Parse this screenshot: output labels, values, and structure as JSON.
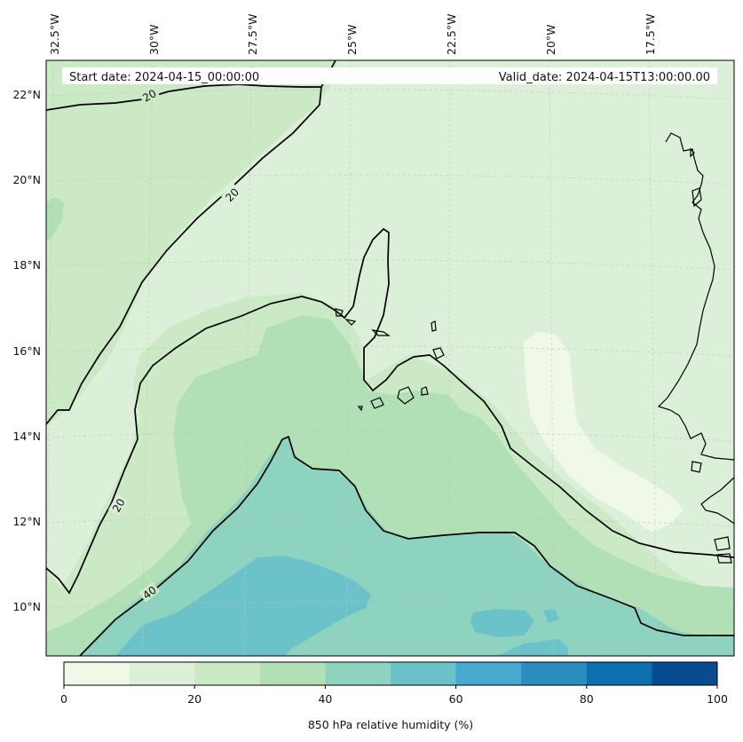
{
  "header": {
    "start_date": "Start date: 2024-04-15_00:00:00",
    "valid_date": "Valid_date: 2024-04-15T13:00:00.00"
  },
  "lon_labels": [
    "32.5°W",
    "30°W",
    "27.5°W",
    "25°W",
    "22.5°W",
    "20°W",
    "17.5°W"
  ],
  "lat_labels": [
    "22°N",
    "20°N",
    "18°N",
    "16°N",
    "14°N",
    "12°N",
    "10°N"
  ],
  "contour_labels": [
    "20",
    "20",
    "20",
    "40"
  ],
  "colorbar": {
    "label": "850 hPa relative humidity (%)",
    "ticks": [
      "0",
      "20",
      "40",
      "60",
      "80",
      "100"
    ],
    "colors": [
      "#f0f9e8",
      "#dcefd8",
      "#cbe9c4",
      "#b1dfb6",
      "#8ed2c0",
      "#6bc3c9",
      "#47a9cf",
      "#2b8cbe",
      "#0e6faf",
      "#084c8f"
    ]
  }
}
